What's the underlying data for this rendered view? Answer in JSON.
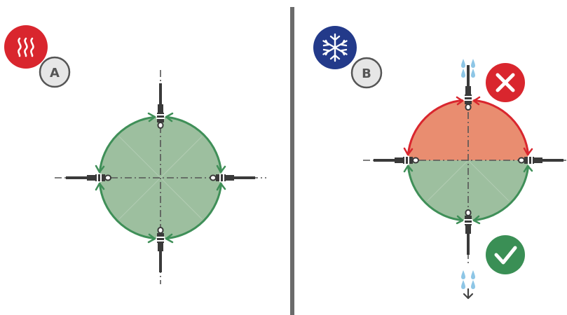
{
  "panels": [
    {
      "id": "A",
      "label": "A",
      "mode_icon": "heat-icon",
      "mode_icon_color": "#d9262e",
      "circle_fill": "#9dbf9f",
      "arrow_color": "#3f8f58"
    },
    {
      "id": "B",
      "label": "B",
      "mode_icon": "snowflake-icon",
      "mode_icon_color": "#233a8a",
      "top_fill": "#e98d70",
      "bottom_fill": "#9dbf9f",
      "top_arrow_color": "#d9262e",
      "bottom_arrow_color": "#3f8f58",
      "wrong_icon": "cross-icon",
      "wrong_color": "#d9262e",
      "correct_icon": "check-icon",
      "correct_color": "#3a8f55",
      "drip_icon": "water-drop-icon",
      "drip_color": "#8ec6e6"
    }
  ],
  "divider_color": "#6b6b6b",
  "probe_color": "#3a3a3a"
}
